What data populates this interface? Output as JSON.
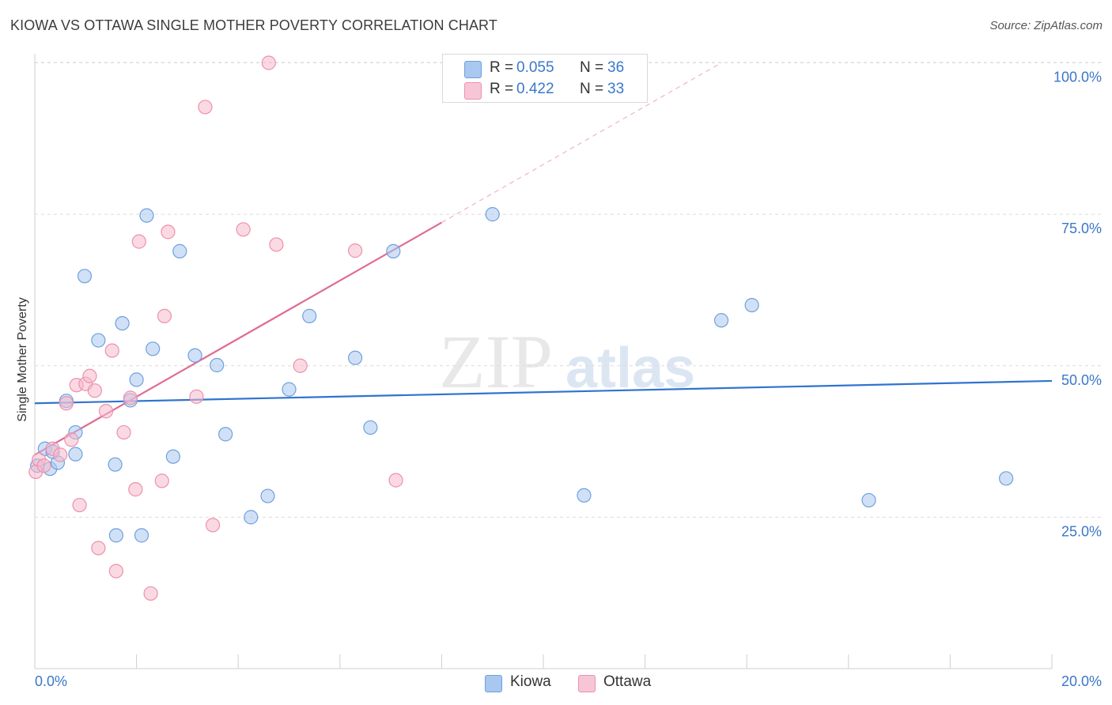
{
  "title": "KIOWA VS OTTAWA SINGLE MOTHER POVERTY CORRELATION CHART",
  "source": "Source: ZipAtlas.com",
  "watermark": {
    "zip": "ZIP",
    "atlas": "atlas"
  },
  "colors": {
    "kiowa_fill": "#a9c8f0",
    "kiowa_stroke": "#6fa0dd",
    "kiowa_line": "#2f74cf",
    "ottawa_fill": "#f7b9cc",
    "ottawa_stroke": "#ec91ad",
    "ottawa_line": "#e06c93",
    "axis_text": "#3a78c9",
    "grid": "#dcdcdc"
  },
  "legend": {
    "kiowa": {
      "r_label": "R =",
      "r_value": "0.055",
      "n_label": "N =",
      "n_value": "36"
    },
    "ottawa": {
      "r_label": "R =",
      "r_value": "0.422",
      "n_label": "N =",
      "n_value": "33"
    }
  },
  "chart_data": {
    "type": "scatter",
    "title": "KIOWA VS OTTAWA SINGLE MOTHER POVERTY CORRELATION CHART",
    "xlabel": "",
    "ylabel": "Single Mother Poverty",
    "xlim": [
      0,
      20
    ],
    "ylim": [
      0,
      103
    ],
    "x_tick_labels": [
      "0.0%",
      "20.0%"
    ],
    "y_ticks": [
      25,
      50,
      75,
      100
    ],
    "y_tick_labels": [
      "25.0%",
      "50.0%",
      "75.0%",
      "100.0%"
    ],
    "grid": true,
    "legend_position": "bottom-center",
    "series": [
      {
        "name": "Kiowa",
        "r": 0.055,
        "n": 36,
        "trend": {
          "x0": 0,
          "y0": 43.8,
          "x1": 20,
          "y1": 47.5,
          "solid_to": 20
        },
        "points": [
          [
            0.05,
            33.5
          ],
          [
            0.2,
            36.3
          ],
          [
            0.3,
            33.0
          ],
          [
            0.45,
            34.0
          ],
          [
            0.62,
            44.2
          ],
          [
            0.8,
            39.0
          ],
          [
            0.98,
            64.8
          ],
          [
            1.25,
            54.2
          ],
          [
            1.58,
            33.7
          ],
          [
            1.72,
            57.0
          ],
          [
            1.88,
            44.3
          ],
          [
            2.0,
            47.7
          ],
          [
            2.2,
            74.8
          ],
          [
            2.32,
            52.8
          ],
          [
            2.72,
            35.0
          ],
          [
            2.85,
            68.9
          ],
          [
            3.15,
            51.7
          ],
          [
            3.58,
            50.1
          ],
          [
            3.75,
            38.7
          ],
          [
            4.25,
            25.0
          ],
          [
            4.58,
            28.5
          ],
          [
            5.0,
            46.1
          ],
          [
            5.4,
            58.2
          ],
          [
            6.3,
            51.3
          ],
          [
            6.6,
            39.8
          ],
          [
            7.05,
            68.9
          ],
          [
            9.0,
            75.0
          ],
          [
            10.8,
            28.6
          ],
          [
            13.5,
            57.5
          ],
          [
            14.1,
            60.0
          ],
          [
            16.4,
            27.8
          ],
          [
            19.1,
            31.4
          ],
          [
            1.6,
            22.0
          ],
          [
            2.1,
            22.0
          ],
          [
            0.8,
            35.4
          ],
          [
            0.35,
            35.8
          ]
        ]
      },
      {
        "name": "Ottawa",
        "r": 0.422,
        "n": 33,
        "trend": {
          "x0": 0,
          "y0": 35.3,
          "x1": 13.5,
          "y1": 100.0,
          "solid_to": 8.0
        },
        "points": [
          [
            0.02,
            32.5
          ],
          [
            0.08,
            34.5
          ],
          [
            0.18,
            33.5
          ],
          [
            0.35,
            36.3
          ],
          [
            0.5,
            35.3
          ],
          [
            0.62,
            43.8
          ],
          [
            0.72,
            37.8
          ],
          [
            0.82,
            46.8
          ],
          [
            0.88,
            27.0
          ],
          [
            1.0,
            47.0
          ],
          [
            1.08,
            48.3
          ],
          [
            1.18,
            45.9
          ],
          [
            1.25,
            19.9
          ],
          [
            1.4,
            42.5
          ],
          [
            1.52,
            52.5
          ],
          [
            1.6,
            16.1
          ],
          [
            1.75,
            39.0
          ],
          [
            1.88,
            44.7
          ],
          [
            1.98,
            29.6
          ],
          [
            2.05,
            70.5
          ],
          [
            2.28,
            12.4
          ],
          [
            2.5,
            31.0
          ],
          [
            2.55,
            58.2
          ],
          [
            2.62,
            72.1
          ],
          [
            3.18,
            44.9
          ],
          [
            3.35,
            92.7
          ],
          [
            3.5,
            23.7
          ],
          [
            4.1,
            72.5
          ],
          [
            4.6,
            100.0
          ],
          [
            4.75,
            70.0
          ],
          [
            5.22,
            50.0
          ],
          [
            6.3,
            69.0
          ],
          [
            7.1,
            31.1
          ]
        ]
      }
    ]
  }
}
